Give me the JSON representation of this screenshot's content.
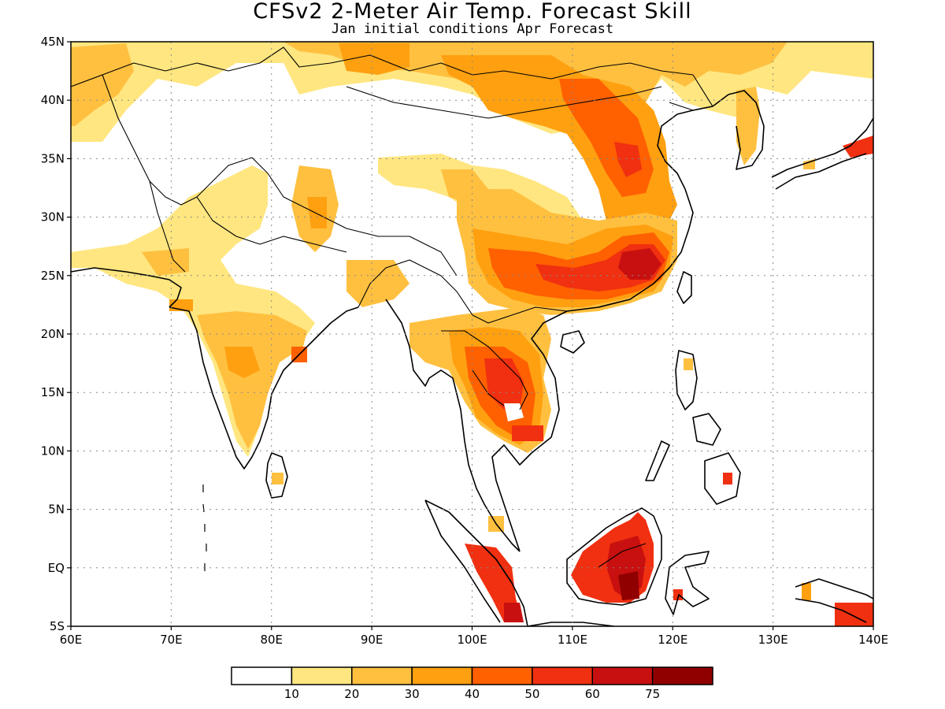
{
  "title": "CFSv2 2-Meter Air Temp. Forecast Skill",
  "subtitle": "Jan initial conditions  Apr Forecast",
  "map": {
    "lon_range": [
      60,
      140
    ],
    "lat_range": [
      -5,
      45
    ],
    "lon_ticks": [
      {
        "value": 60,
        "label": "60E"
      },
      {
        "value": 70,
        "label": "70E"
      },
      {
        "value": 80,
        "label": "80E"
      },
      {
        "value": 90,
        "label": "90E"
      },
      {
        "value": 100,
        "label": "100E"
      },
      {
        "value": 110,
        "label": "110E"
      },
      {
        "value": 120,
        "label": "120E"
      },
      {
        "value": 130,
        "label": "130E"
      },
      {
        "value": 140,
        "label": "140E"
      }
    ],
    "lat_ticks": [
      {
        "value": 45,
        "label": "45N"
      },
      {
        "value": 40,
        "label": "40N"
      },
      {
        "value": 35,
        "label": "35N"
      },
      {
        "value": 30,
        "label": "30N"
      },
      {
        "value": 25,
        "label": "25N"
      },
      {
        "value": 20,
        "label": "20N"
      },
      {
        "value": 15,
        "label": "15N"
      },
      {
        "value": 10,
        "label": "10N"
      },
      {
        "value": 5,
        "label": "5N"
      },
      {
        "value": 0,
        "label": "EQ"
      },
      {
        "value": -5,
        "label": "5S"
      }
    ],
    "grid": "dotted"
  },
  "colorbar": {
    "colors": [
      "#ffffff",
      "#ffe680",
      "#ffc040",
      "#ffa010",
      "#ff6000",
      "#f03010",
      "#c81010",
      "#900000"
    ],
    "labels": [
      "10",
      "20",
      "30",
      "40",
      "50",
      "60",
      "75"
    ],
    "boundary_colors": [
      "#ffffff",
      "#ffe680",
      "#ffc040",
      "#ffa010",
      "#ff6000",
      "#f03010",
      "#c81010",
      "#900000"
    ]
  }
}
